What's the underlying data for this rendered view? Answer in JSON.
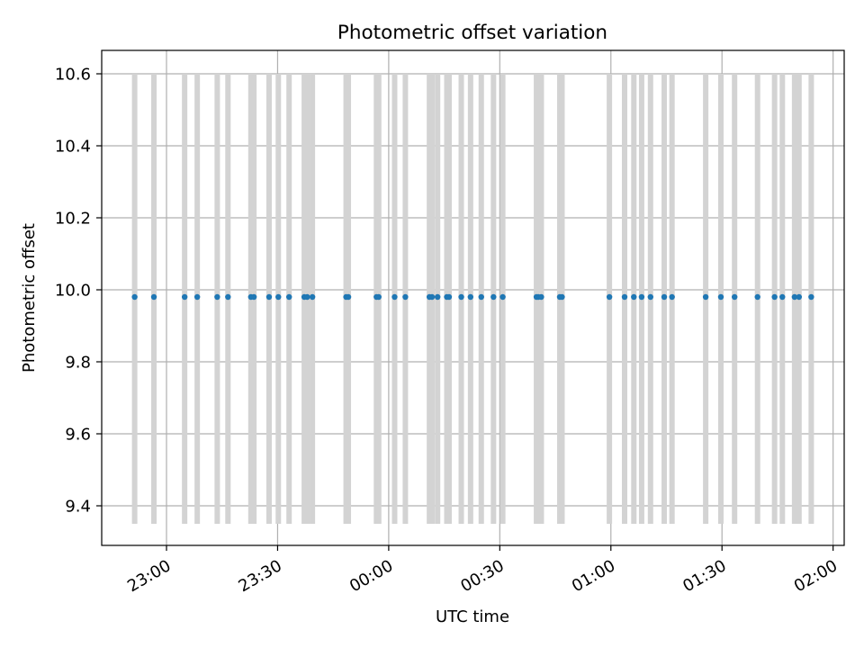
{
  "chart_data": {
    "type": "scatter",
    "title": "Photometric offset variation",
    "xlabel": "UTC time",
    "ylabel": "Photometric offset",
    "grid": true,
    "colors": {
      "point": "#1f77b4",
      "errorbar": "#d3d3d3",
      "grid": "#b0b0b0",
      "frame": "#000000"
    },
    "x_unit": "minutes relative to 00:00 UTC",
    "xlim": [
      -77.5,
      123.0
    ],
    "ylim": [
      9.29,
      10.665
    ],
    "x_ticks": [
      {
        "value": -60,
        "label": "23:00"
      },
      {
        "value": -30,
        "label": "23:30"
      },
      {
        "value": 0,
        "label": "00:00"
      },
      {
        "value": 30,
        "label": "00:30"
      },
      {
        "value": 60,
        "label": "01:00"
      },
      {
        "value": 90,
        "label": "01:30"
      },
      {
        "value": 120,
        "label": "02:00"
      }
    ],
    "y_ticks": [
      {
        "value": 9.4,
        "label": "9.4"
      },
      {
        "value": 9.6,
        "label": "9.6"
      },
      {
        "value": 9.8,
        "label": "9.8"
      },
      {
        "value": 10.0,
        "label": "10.0"
      },
      {
        "value": 10.2,
        "label": "10.2"
      },
      {
        "value": 10.4,
        "label": "10.4"
      },
      {
        "value": 10.6,
        "label": "10.6"
      }
    ],
    "y_value": 9.98,
    "y_low": 9.35,
    "y_high": 10.6,
    "x": [
      -68.6,
      -63.4,
      -55.1,
      -51.7,
      -46.3,
      -43.4,
      -37.2,
      -36.4,
      -32.3,
      -29.8,
      -26.9,
      -22.8,
      -22.0,
      -20.6,
      -11.5,
      -10.9,
      -3.3,
      -2.7,
      1.6,
      4.5,
      11.0,
      11.7,
      13.2,
      15.7,
      16.3,
      19.6,
      22.1,
      25.0,
      28.3,
      30.8,
      39.9,
      40.4,
      41.2,
      46.2,
      46.8,
      59.6,
      63.7,
      66.2,
      68.3,
      70.7,
      74.4,
      76.5,
      85.6,
      89.7,
      93.4,
      99.6,
      104.2,
      106.3,
      109.6,
      110.8,
      114.1
    ]
  }
}
